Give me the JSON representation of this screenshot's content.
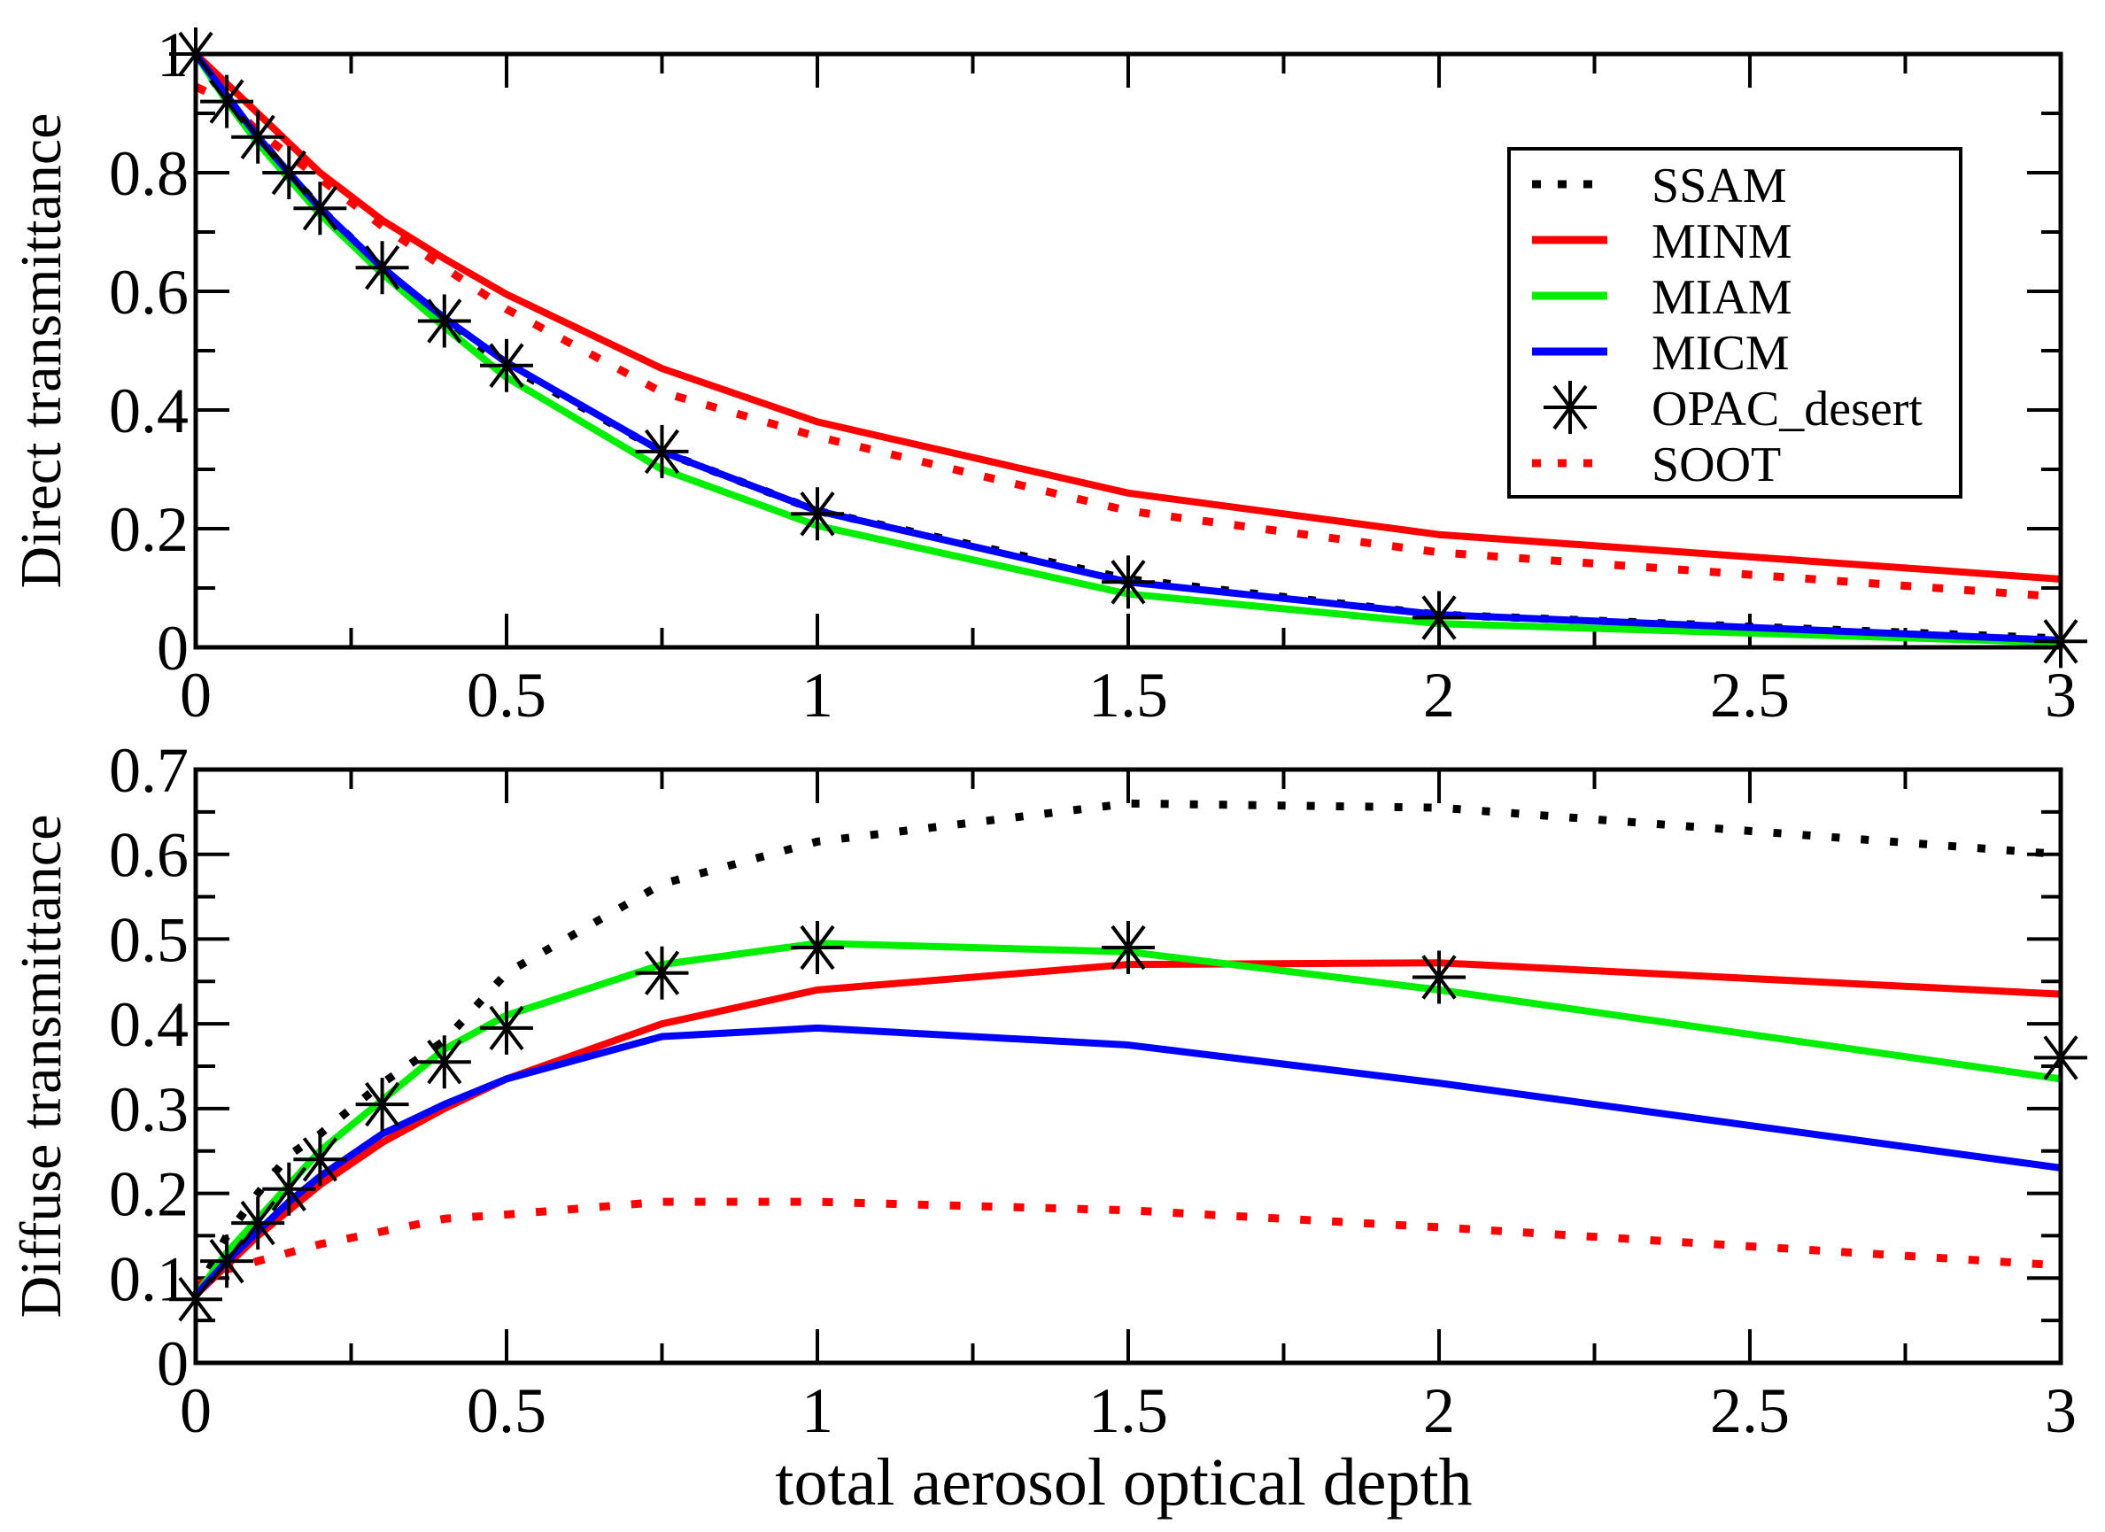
{
  "chart_data": [
    {
      "type": "line",
      "title": "",
      "xlabel": "",
      "ylabel": "Direct transmittance",
      "xlim": [
        0,
        3
      ],
      "ylim": [
        0,
        1
      ],
      "xticks": [
        "0",
        "0.5",
        "1",
        "1.5",
        "2",
        "2.5",
        "3"
      ],
      "yticks": [
        "0",
        "0.2",
        "0.4",
        "0.6",
        "0.8",
        "1"
      ],
      "x": [
        0,
        0.05,
        0.1,
        0.15,
        0.2,
        0.3,
        0.4,
        0.5,
        0.75,
        1,
        1.5,
        2,
        3
      ],
      "legend_position": "top-right",
      "legend": [
        "SSAM",
        "MINM",
        "MIAM",
        "MICM",
        "OPAC_desert",
        "SOOT"
      ],
      "series": [
        {
          "name": "SSAM",
          "color": "#000000",
          "style": "dotted",
          "values": [
            1,
            0.92,
            0.86,
            0.8,
            0.74,
            0.64,
            0.55,
            0.475,
            0.33,
            0.23,
            0.115,
            0.055,
            0.015
          ]
        },
        {
          "name": "MINM",
          "color": "#ff0000",
          "style": "solid",
          "values": [
            1,
            0.95,
            0.9,
            0.85,
            0.8,
            0.72,
            0.655,
            0.595,
            0.47,
            0.38,
            0.26,
            0.19,
            0.115
          ]
        },
        {
          "name": "MIAM",
          "color": "#00ee00",
          "style": "solid",
          "values": [
            1,
            0.92,
            0.85,
            0.79,
            0.73,
            0.63,
            0.54,
            0.455,
            0.3,
            0.205,
            0.09,
            0.04,
            0.008
          ]
        },
        {
          "name": "MICM",
          "color": "#0000ff",
          "style": "solid",
          "values": [
            1,
            0.93,
            0.86,
            0.8,
            0.74,
            0.64,
            0.555,
            0.48,
            0.33,
            0.23,
            0.11,
            0.055,
            0.012
          ]
        },
        {
          "name": "OPAC_desert",
          "color": "#000000",
          "style": "markers",
          "values": [
            1,
            0.92,
            0.86,
            0.8,
            0.74,
            0.64,
            0.55,
            0.475,
            0.33,
            0.225,
            0.11,
            0.05,
            0.01
          ]
        },
        {
          "name": "SOOT",
          "color": "#ff0000",
          "style": "dotted",
          "values": [
            0.945,
            0.92,
            0.87,
            0.83,
            0.79,
            0.71,
            0.64,
            0.57,
            0.43,
            0.355,
            0.23,
            0.16,
            0.085
          ]
        }
      ]
    },
    {
      "type": "line",
      "title": "",
      "xlabel": "total aerosol optical depth",
      "ylabel": "Diffuse transmittance",
      "xlim": [
        0,
        3
      ],
      "ylim": [
        0,
        0.7
      ],
      "xticks": [
        "0",
        "0.5",
        "1",
        "1.5",
        "2",
        "2.5",
        "3"
      ],
      "yticks": [
        "0",
        "0.1",
        "0.2",
        "0.3",
        "0.4",
        "0.5",
        "0.6",
        "0.7"
      ],
      "x": [
        0,
        0.05,
        0.1,
        0.15,
        0.2,
        0.3,
        0.4,
        0.5,
        0.75,
        1,
        1.5,
        2,
        3
      ],
      "series": [
        {
          "name": "SSAM",
          "color": "#000000",
          "style": "dotted",
          "values": [
            0.08,
            0.15,
            0.2,
            0.245,
            0.27,
            0.33,
            0.38,
            0.46,
            0.565,
            0.615,
            0.66,
            0.655,
            0.6
          ]
        },
        {
          "name": "MINM",
          "color": "#ff0000",
          "style": "solid",
          "values": [
            0.08,
            0.115,
            0.15,
            0.18,
            0.21,
            0.26,
            0.3,
            0.335,
            0.4,
            0.44,
            0.47,
            0.472,
            0.435
          ]
        },
        {
          "name": "MIAM",
          "color": "#00ee00",
          "style": "solid",
          "values": [
            0.08,
            0.13,
            0.17,
            0.21,
            0.25,
            0.31,
            0.37,
            0.41,
            0.47,
            0.495,
            0.485,
            0.44,
            0.335
          ]
        },
        {
          "name": "MICM",
          "color": "#0000ff",
          "style": "solid",
          "values": [
            0.08,
            0.12,
            0.155,
            0.19,
            0.22,
            0.27,
            0.305,
            0.335,
            0.385,
            0.395,
            0.375,
            0.33,
            0.23
          ]
        },
        {
          "name": "OPAC_desert",
          "color": "#000000",
          "style": "markers",
          "values": [
            0.075,
            0.12,
            0.165,
            0.205,
            0.24,
            0.305,
            0.355,
            0.395,
            0.46,
            0.49,
            0.49,
            0.455,
            0.36
          ]
        },
        {
          "name": "SOOT",
          "color": "#ff0000",
          "style": "dotted",
          "values": [
            0.09,
            0.11,
            0.12,
            0.13,
            0.14,
            0.155,
            0.17,
            0.175,
            0.19,
            0.19,
            0.18,
            0.16,
            0.115
          ]
        }
      ]
    }
  ]
}
